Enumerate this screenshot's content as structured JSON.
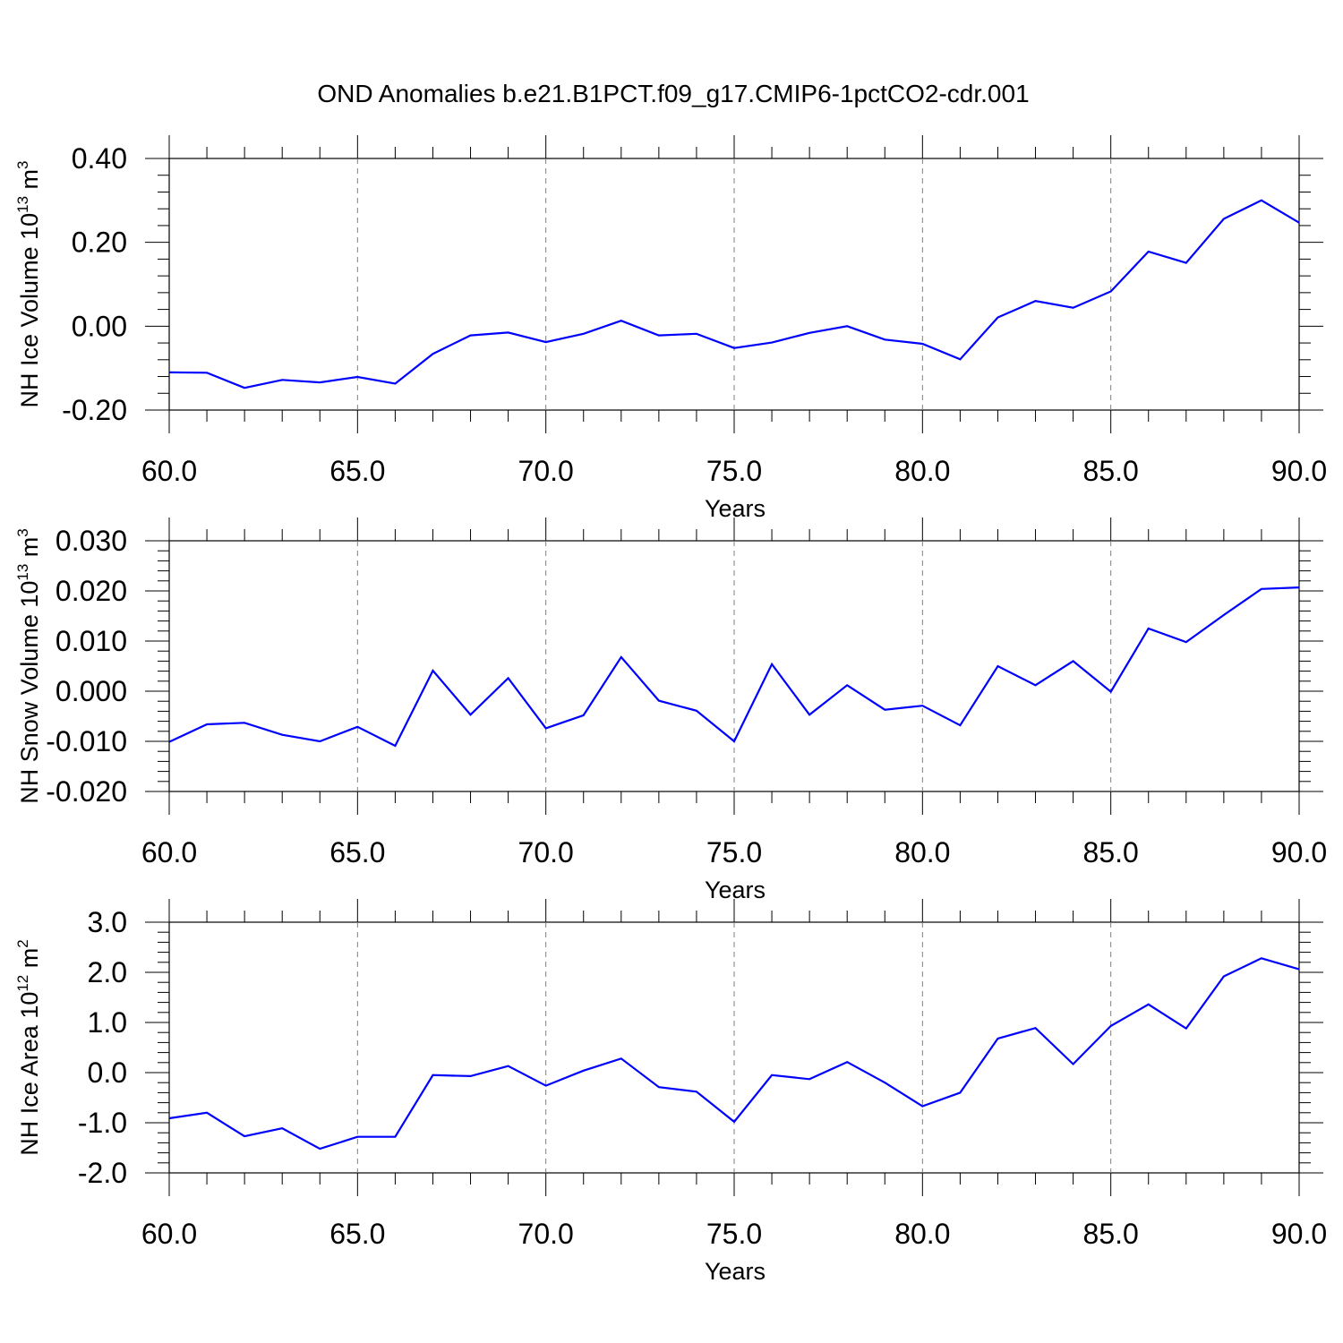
{
  "title": "OND Anomalies b.e21.B1PCT.f09_g17.CMIP6-1pctCO2-cdr.001",
  "colors": {
    "line": "#0000ff",
    "axis": "#000000",
    "grid": "#7f7f7f"
  },
  "chart_data": [
    {
      "type": "line",
      "ylabel": {
        "main": "NH Ice Volume 10",
        "sup1": "13",
        "mid": " m",
        "sup2": "3"
      },
      "xlabel": "Years",
      "xlim": [
        60,
        90
      ],
      "ylim": [
        -0.2,
        0.4
      ],
      "xticks": [
        "60.0",
        "65.0",
        "70.0",
        "75.0",
        "80.0",
        "85.0",
        "90.0"
      ],
      "yticks": [
        "-0.20",
        "0.00",
        "0.20",
        "0.40"
      ],
      "x": [
        60,
        61,
        62,
        63,
        64,
        65,
        66,
        67,
        68,
        69,
        70,
        71,
        72,
        73,
        74,
        75,
        76,
        77,
        78,
        79,
        80,
        81,
        82,
        83,
        84,
        85,
        86,
        87,
        88,
        89,
        90
      ],
      "series": [
        {
          "values": [
            -0.11,
            -0.111,
            -0.147,
            -0.128,
            -0.134,
            -0.121,
            -0.137,
            -0.066,
            -0.022,
            -0.015,
            -0.038,
            -0.018,
            0.013,
            -0.022,
            -0.018,
            -0.052,
            -0.039,
            -0.016,
            0.0,
            -0.032,
            -0.042,
            -0.079,
            0.021,
            0.06,
            0.044,
            0.083,
            0.178,
            0.151,
            0.256,
            0.3,
            0.247
          ]
        }
      ]
    },
    {
      "type": "line",
      "ylabel": {
        "main": "NH Snow Volume 10",
        "sup1": "13",
        "mid": " m",
        "sup2": "3"
      },
      "xlabel": "Years",
      "xlim": [
        60,
        90
      ],
      "ylim": [
        -0.02,
        0.03
      ],
      "xticks": [
        "60.0",
        "65.0",
        "70.0",
        "75.0",
        "80.0",
        "85.0",
        "90.0"
      ],
      "yticks": [
        "-0.020",
        "-0.010",
        "0.000",
        "0.010",
        "0.020",
        "0.030"
      ],
      "x": [
        60,
        61,
        62,
        63,
        64,
        65,
        66,
        67,
        68,
        69,
        70,
        71,
        72,
        73,
        74,
        75,
        76,
        77,
        78,
        79,
        80,
        81,
        82,
        83,
        84,
        85,
        86,
        87,
        88,
        89,
        90
      ],
      "series": [
        {
          "values": [
            -0.0101,
            -0.0066,
            -0.0063,
            -0.0087,
            -0.01,
            -0.0071,
            -0.0109,
            0.0041,
            -0.0047,
            0.0026,
            -0.0074,
            -0.0048,
            0.0068,
            -0.0019,
            -0.0039,
            -0.01,
            0.0054,
            -0.0047,
            0.0012,
            -0.0037,
            -0.0029,
            -0.0068,
            0.005,
            0.0012,
            0.006,
            -0.0001,
            0.0125,
            0.0098,
            0.0152,
            0.0204,
            0.0207
          ]
        }
      ]
    },
    {
      "type": "line",
      "ylabel": {
        "main": "NH Ice Area 10",
        "sup1": "12",
        "mid": " m",
        "sup2": "2"
      },
      "xlabel": "Years",
      "xlim": [
        60,
        90
      ],
      "ylim": [
        -2.0,
        3.0
      ],
      "xticks": [
        "60.0",
        "65.0",
        "70.0",
        "75.0",
        "80.0",
        "85.0",
        "90.0"
      ],
      "yticks": [
        "-2.0",
        "-1.0",
        "0.0",
        "1.0",
        "2.0",
        "3.0"
      ],
      "x": [
        60,
        61,
        62,
        63,
        64,
        65,
        66,
        67,
        68,
        69,
        70,
        71,
        72,
        73,
        74,
        75,
        76,
        77,
        78,
        79,
        80,
        81,
        82,
        83,
        84,
        85,
        86,
        87,
        88,
        89,
        90
      ],
      "series": [
        {
          "values": [
            -0.91,
            -0.8,
            -1.27,
            -1.11,
            -1.52,
            -1.28,
            -1.28,
            -0.05,
            -0.07,
            0.13,
            -0.26,
            0.04,
            0.28,
            -0.29,
            -0.38,
            -0.98,
            -0.05,
            -0.13,
            0.21,
            -0.2,
            -0.67,
            -0.4,
            0.68,
            0.89,
            0.17,
            0.93,
            1.36,
            0.88,
            1.92,
            2.28,
            2.06
          ]
        }
      ]
    }
  ]
}
